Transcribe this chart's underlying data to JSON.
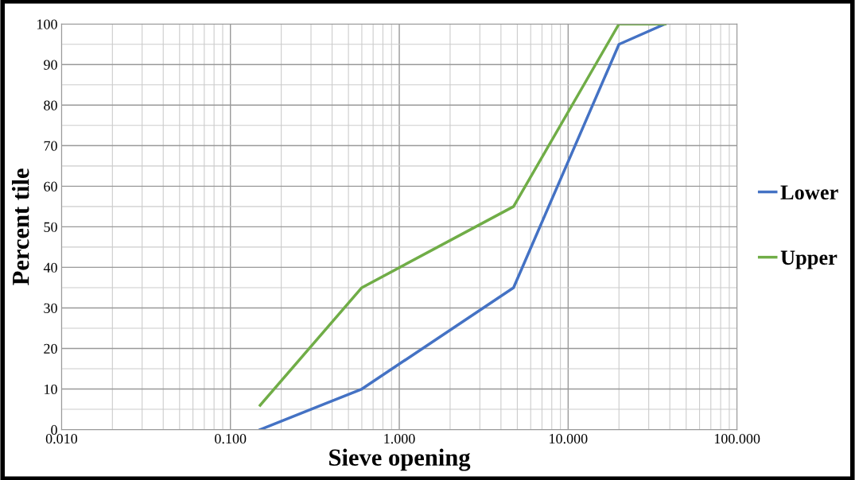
{
  "chart_data": {
    "type": "line",
    "xlabel": "Sieve opening",
    "ylabel": "Percent tile",
    "log": "x",
    "xlim": [
      0.01,
      100
    ],
    "xticks": [
      {
        "value": 0.01,
        "label": "0.010"
      },
      {
        "value": 0.1,
        "label": "0.100"
      },
      {
        "value": 1,
        "label": "1.000"
      },
      {
        "value": 10,
        "label": "10.000"
      },
      {
        "value": 100,
        "label": "100.000"
      }
    ],
    "ylim": [
      0,
      100
    ],
    "yticks": [
      0,
      10,
      20,
      30,
      40,
      50,
      60,
      70,
      80,
      90,
      100
    ],
    "grid": true,
    "legend": "right",
    "marker": "none",
    "line_style": "solid",
    "series": [
      {
        "name": "Lower",
        "color": "#4472c4",
        "x": [
          0.15,
          0.6,
          4.75,
          20,
          37.5
        ],
        "values": [
          0,
          10,
          35,
          95,
          100
        ]
      },
      {
        "name": "Upper",
        "color": "#70ad47",
        "x": [
          0.15,
          0.6,
          4.75,
          20,
          37.5
        ],
        "values": [
          6,
          35,
          55,
          100,
          100
        ]
      }
    ]
  }
}
